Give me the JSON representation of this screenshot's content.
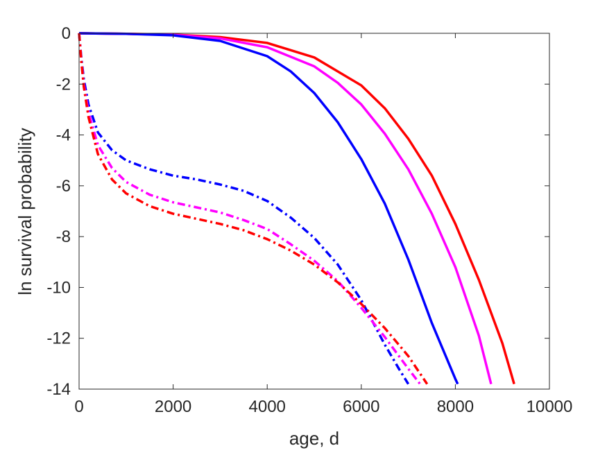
{
  "chart_data": {
    "type": "line",
    "title": "",
    "xlabel": "age, d",
    "ylabel": "ln survival probability",
    "xlim": [
      0,
      10000
    ],
    "ylim": [
      -14,
      0
    ],
    "xticks": [
      0,
      2000,
      4000,
      6000,
      8000,
      10000
    ],
    "yticks": [
      0,
      -2,
      -4,
      -6,
      -8,
      -10,
      -12,
      -14
    ],
    "xtick_labels": [
      "0",
      "2000",
      "4000",
      "6000",
      "8000",
      "10000"
    ],
    "ytick_labels": [
      "0",
      "-2",
      "-4",
      "-6",
      "-8",
      "-10",
      "-12",
      "-14"
    ],
    "grid": false,
    "legend": "none",
    "series": [
      {
        "color": "#ff0000",
        "style": "solid",
        "x": [
          0,
          1000,
          2000,
          3000,
          4000,
          5000,
          6000,
          6500,
          7000,
          7500,
          8000,
          8500,
          9000,
          9250
        ],
        "y": [
          0,
          -0.02,
          -0.05,
          -0.15,
          -0.38,
          -0.95,
          -2.05,
          -2.95,
          -4.15,
          -5.6,
          -7.5,
          -9.7,
          -12.2,
          -13.8
        ]
      },
      {
        "color": "#ff00ff",
        "style": "solid",
        "x": [
          0,
          1000,
          2000,
          3000,
          4000,
          5000,
          5500,
          6000,
          6500,
          7000,
          7500,
          8000,
          8500,
          8760
        ],
        "y": [
          0,
          -0.02,
          -0.06,
          -0.2,
          -0.55,
          -1.3,
          -1.95,
          -2.8,
          -3.95,
          -5.35,
          -7.1,
          -9.2,
          -11.9,
          -13.8
        ]
      },
      {
        "color": "#0000ff",
        "style": "solid",
        "x": [
          0,
          1000,
          2000,
          3000,
          4000,
          4500,
          5000,
          5500,
          6000,
          6500,
          7000,
          7500,
          8000,
          8050
        ],
        "y": [
          0,
          -0.02,
          -0.08,
          -0.3,
          -0.9,
          -1.5,
          -2.35,
          -3.5,
          -4.95,
          -6.7,
          -8.9,
          -11.4,
          -13.6,
          -13.8
        ]
      },
      {
        "color": "#0000ff",
        "style": "dashdot",
        "x": [
          0,
          50,
          100,
          200,
          400,
          700,
          1000,
          1500,
          2000,
          2500,
          3000,
          3500,
          4000,
          4500,
          5000,
          5500,
          6000,
          6500,
          6800,
          7000
        ],
        "y": [
          0,
          -1.0,
          -1.8,
          -2.8,
          -3.9,
          -4.6,
          -5.0,
          -5.35,
          -5.6,
          -5.75,
          -5.95,
          -6.2,
          -6.6,
          -7.25,
          -8.05,
          -9.1,
          -10.5,
          -12.25,
          -13.2,
          -13.8
        ]
      },
      {
        "color": "#ff00ff",
        "style": "dashdot",
        "x": [
          0,
          50,
          100,
          200,
          400,
          700,
          1000,
          1500,
          2000,
          2500,
          3000,
          3500,
          4000,
          4500,
          5000,
          5500,
          6000,
          6500,
          7000,
          7250
        ],
        "y": [
          0,
          -1.1,
          -2.0,
          -3.1,
          -4.4,
          -5.3,
          -5.85,
          -6.35,
          -6.65,
          -6.85,
          -7.05,
          -7.35,
          -7.7,
          -8.3,
          -8.95,
          -9.75,
          -10.8,
          -11.95,
          -13.2,
          -13.8
        ]
      },
      {
        "color": "#ff0000",
        "style": "dashdot",
        "x": [
          0,
          50,
          100,
          200,
          400,
          700,
          1000,
          1500,
          2000,
          2500,
          3000,
          3500,
          4000,
          4500,
          5000,
          5500,
          6000,
          6500,
          7000,
          7400
        ],
        "y": [
          0,
          -1.15,
          -2.1,
          -3.3,
          -4.75,
          -5.75,
          -6.3,
          -6.8,
          -7.1,
          -7.3,
          -7.5,
          -7.75,
          -8.1,
          -8.55,
          -9.1,
          -9.8,
          -10.65,
          -11.6,
          -12.7,
          -13.8
        ]
      }
    ]
  }
}
